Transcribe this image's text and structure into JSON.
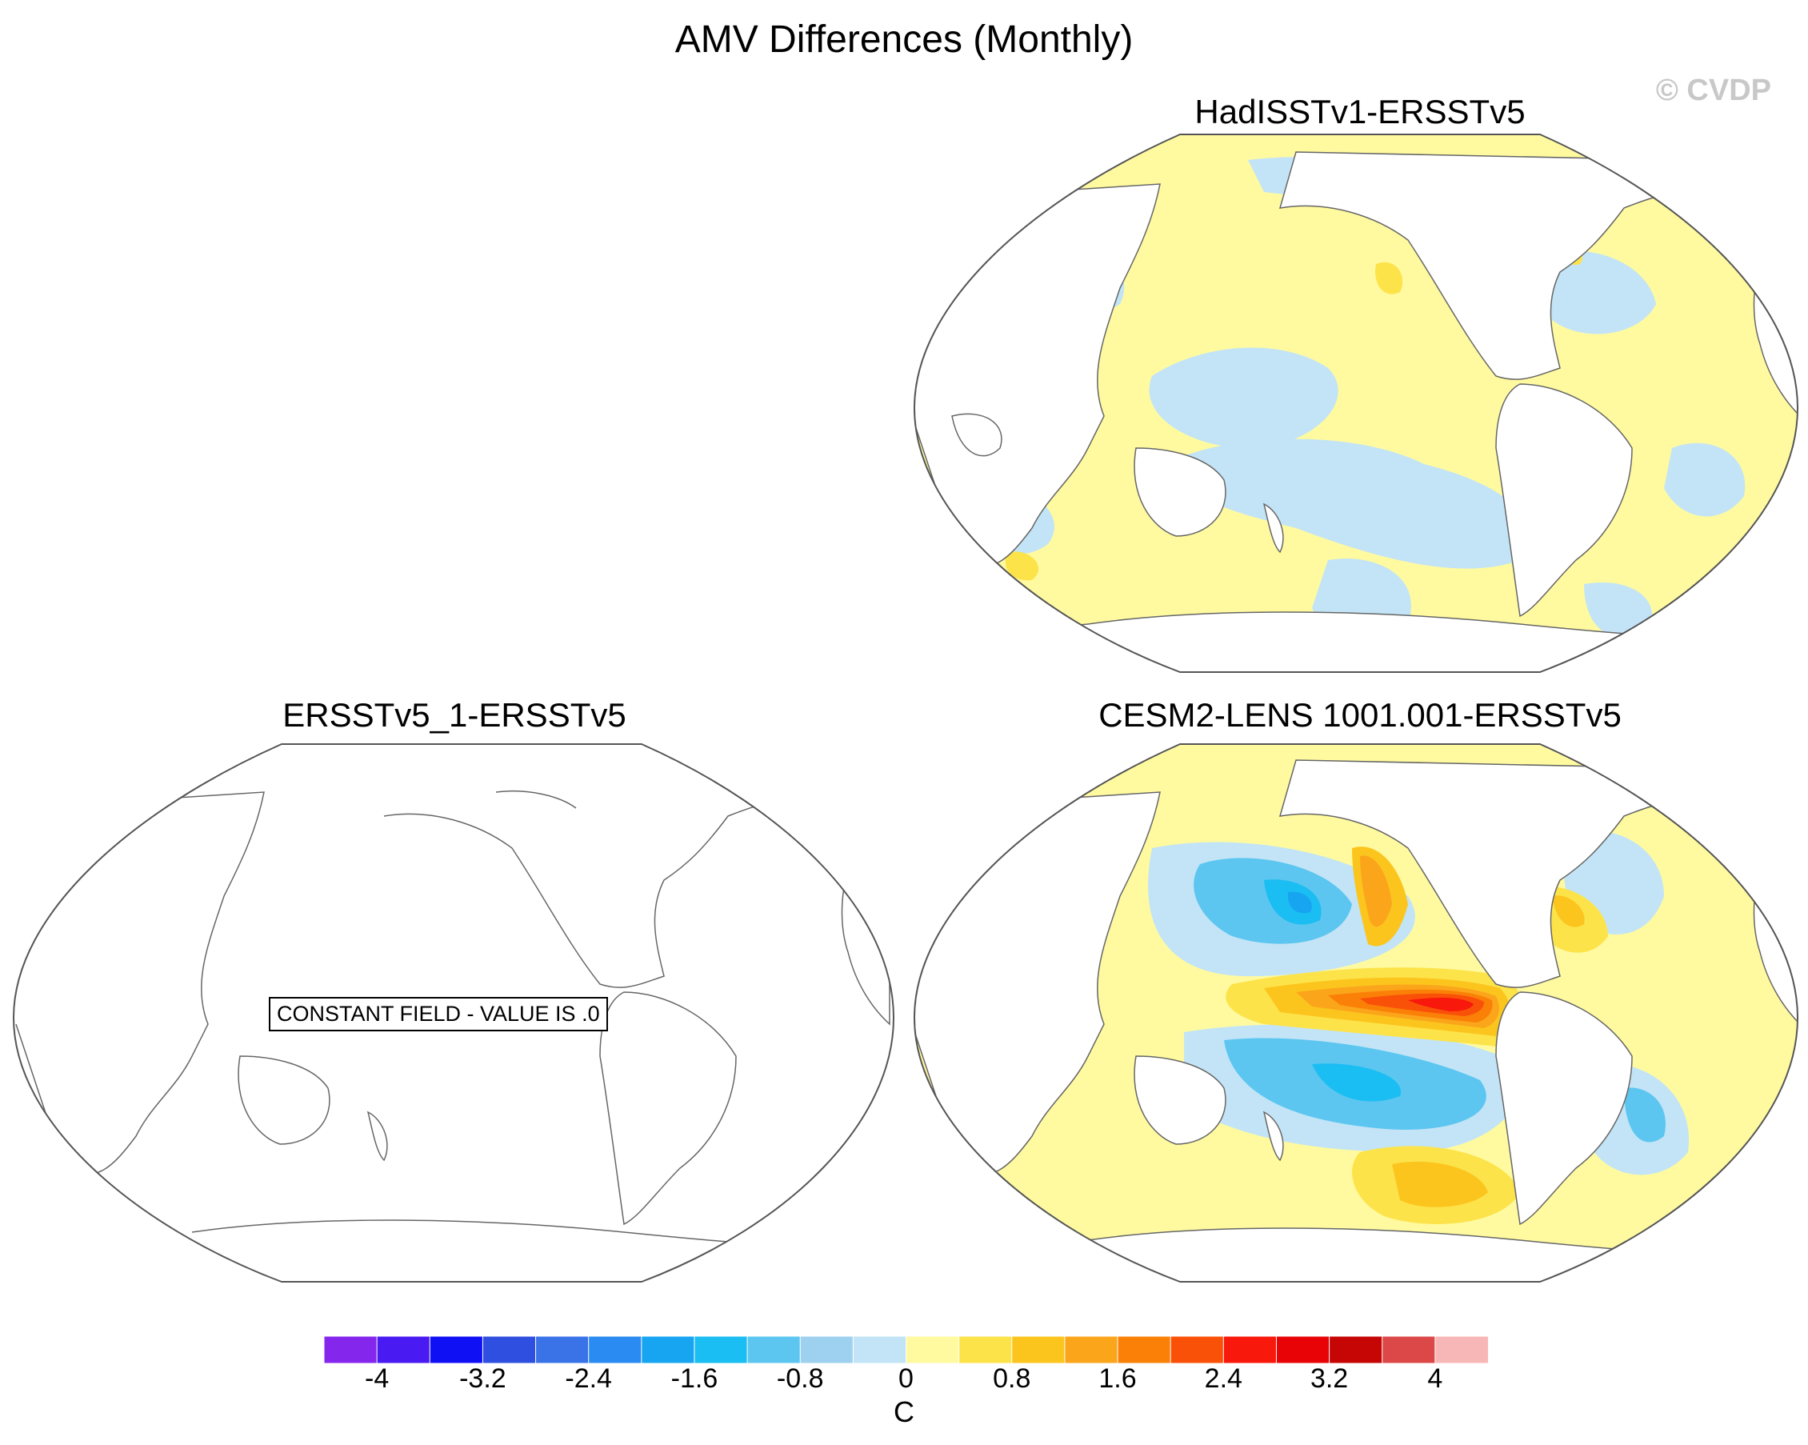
{
  "title": "AMV Differences (Monthly)",
  "watermark": "© CVDP",
  "panels": [
    {
      "title": "HadISSTv1-ERSSTv5",
      "range": "weak",
      "note": null
    },
    {
      "title": "ERSSTv5_1-ERSSTv5",
      "range": "constant",
      "note": "CONSTANT FIELD - VALUE IS .0"
    },
    {
      "title": "CESM2-LENS 1001.001-ERSSTv5",
      "range": "strong",
      "note": null
    }
  ],
  "colorbar": {
    "unit": "C",
    "colors": [
      "#8526ed",
      "#4a1af2",
      "#1010f5",
      "#2e4fe0",
      "#3a73e8",
      "#2a8cf2",
      "#17a4f0",
      "#1abef2",
      "#5cc6f0",
      "#9ed1ef",
      "#c2e4f6",
      "#fffaa0",
      "#fde34a",
      "#fbc51e",
      "#fba51b",
      "#fb8007",
      "#fa5108",
      "#f8180c",
      "#e80406",
      "#c50604",
      "#dc4848",
      "#f8b7b7"
    ],
    "tick_labels": [
      "-4",
      "-3.2",
      "-2.4",
      "-1.6",
      "-0.8",
      "0",
      "0.8",
      "1.6",
      "2.4",
      "3.2",
      "4"
    ]
  }
}
